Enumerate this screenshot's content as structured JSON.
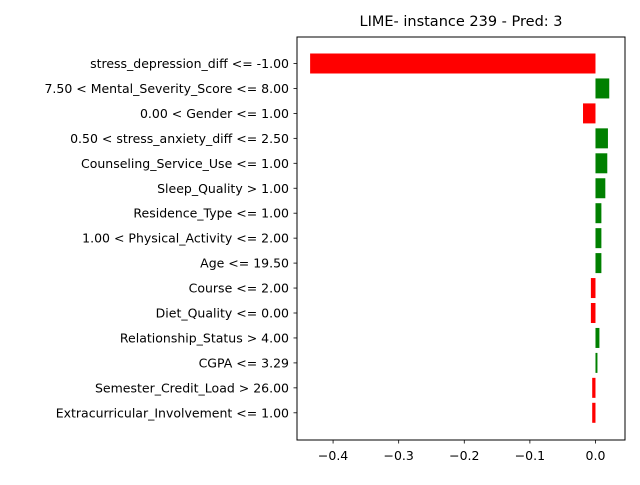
{
  "chart_data": {
    "type": "bar",
    "orientation": "horizontal",
    "title": "LIME- instance 239 - Pred: 3",
    "xlabel": "",
    "ylabel": "",
    "xlim": [
      -0.455,
      0.045
    ],
    "xticks": [
      -0.4,
      -0.3,
      -0.2,
      -0.1,
      0.0
    ],
    "xtick_labels": [
      "−0.4",
      "−0.3",
      "−0.2",
      "−0.1",
      "0.0"
    ],
    "grid": false,
    "positive_color": "#008000",
    "negative_color": "#ff0000",
    "categories": [
      "stress_depression_diff <= -1.00",
      "7.50 < Mental_Severity_Score <= 8.00",
      "0.00 < Gender <= 1.00",
      "0.50 < stress_anxiety_diff <= 2.50",
      "Counseling_Service_Use <= 1.00",
      "Sleep_Quality > 1.00",
      "Residence_Type <= 1.00",
      "1.00 < Physical_Activity <= 2.00",
      "Age <= 19.50",
      "Course <= 2.00",
      "Diet_Quality <= 0.00",
      "Relationship_Status > 4.00",
      "CGPA <= 3.29",
      "Semester_Credit_Load > 26.00",
      "Extracurricular_Involvement <= 1.00"
    ],
    "values": [
      -0.435,
      0.021,
      -0.019,
      0.019,
      0.018,
      0.015,
      0.009,
      0.009,
      0.009,
      -0.007,
      -0.007,
      0.006,
      0.003,
      -0.005,
      -0.005
    ]
  }
}
